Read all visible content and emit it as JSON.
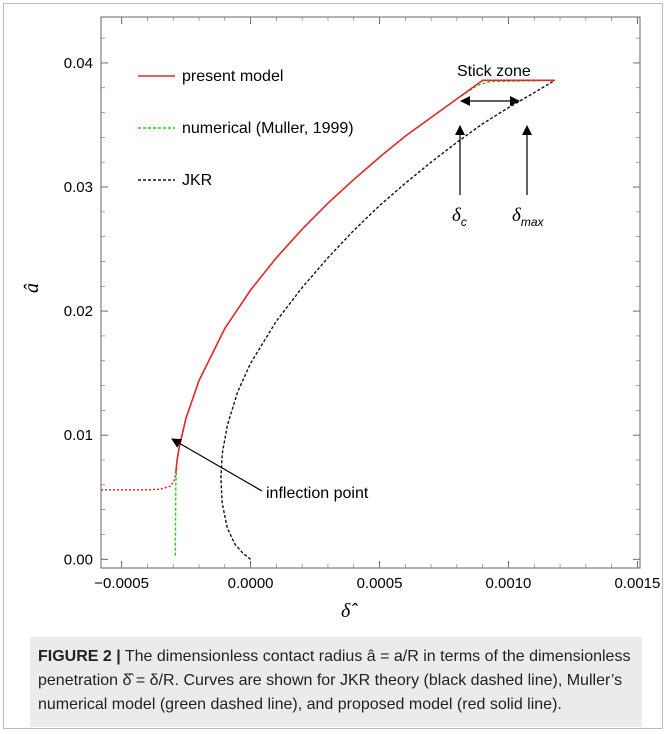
{
  "figure": {
    "label": "FIGURE 2 |",
    "caption": "The dimensionless contact radius â = a/R in terms of the dimensionless penetration δ̂ = δ/R. Curves are shown for JKR theory (black dashed line), Muller’s numerical model (green dashed line), and proposed model (red solid line)."
  },
  "chart_data": {
    "type": "line",
    "xlabel": "δ̂",
    "ylabel": "â",
    "xlim": [
      -0.00058,
      0.00151
    ],
    "ylim": [
      -0.0007,
      0.0437
    ],
    "xticks": [
      -0.0005,
      0.0,
      0.0005,
      0.001,
      0.0015
    ],
    "xtick_labels": [
      "−0.0005",
      "0.0000",
      "0.0005",
      "0.0010",
      "0.0015"
    ],
    "yticks": [
      0.0,
      0.01,
      0.02,
      0.03,
      0.04
    ],
    "ytick_labels": [
      "0.00",
      "0.01",
      "0.02",
      "0.03",
      "0.04"
    ],
    "grid": false,
    "legend_position": "top-left",
    "series": [
      {
        "name": "present model",
        "color": "#e8262a",
        "style": "solid",
        "points": [
          [
            -0.00058,
            0.0056
          ],
          [
            -0.00048,
            0.0056
          ],
          [
            -0.0004,
            0.0056
          ],
          [
            -0.00035,
            0.00565
          ],
          [
            -0.00031,
            0.0059
          ],
          [
            -0.000295,
            0.0064
          ],
          [
            -0.00029,
            0.007
          ],
          [
            -0.000285,
            0.008
          ],
          [
            -0.000275,
            0.0092
          ],
          [
            -0.00025,
            0.0114
          ],
          [
            -0.0002,
            0.0144
          ],
          [
            -0.0001,
            0.0186
          ],
          [
            0.0,
            0.0217
          ],
          [
            0.0001,
            0.0243
          ],
          [
            0.0002,
            0.0266
          ],
          [
            0.0003,
            0.0287
          ],
          [
            0.0004,
            0.0306
          ],
          [
            0.0005,
            0.0324
          ],
          [
            0.0006,
            0.0341
          ],
          [
            0.0007,
            0.0356
          ],
          [
            0.0008,
            0.0371
          ],
          [
            0.00088,
            0.0383
          ],
          [
            0.0009,
            0.0386
          ],
          [
            0.00118,
            0.0386
          ]
        ],
        "dashed_until_x": -0.00029
      },
      {
        "name": "numerical (Muller, 1999)",
        "color": "#22cc22",
        "style": "dashed",
        "points": [
          [
            -0.000292,
            0.0003
          ],
          [
            -0.000291,
            0.003
          ],
          [
            -0.00029,
            0.006
          ],
          [
            -0.000285,
            0.008
          ],
          [
            -0.000275,
            0.0092
          ],
          [
            -0.00025,
            0.0114
          ],
          [
            -0.0002,
            0.0144
          ],
          [
            -0.0001,
            0.0186
          ],
          [
            0.0,
            0.0217
          ],
          [
            0.0001,
            0.0243
          ],
          [
            0.0002,
            0.0266
          ],
          [
            0.0003,
            0.0287
          ],
          [
            0.0004,
            0.0306
          ],
          [
            0.0005,
            0.0324
          ],
          [
            0.0006,
            0.0341
          ],
          [
            0.0007,
            0.0356
          ],
          [
            0.0008,
            0.0371
          ],
          [
            0.00088,
            0.0382
          ],
          [
            0.00093,
            0.0385
          ],
          [
            0.00118,
            0.0386
          ]
        ]
      },
      {
        "name": "JKR",
        "color": "#111111",
        "style": "dashed",
        "points": [
          [
            0.0,
            0.0
          ],
          [
            -3e-05,
            0.0005
          ],
          [
            -6e-05,
            0.0012
          ],
          [
            -9e-05,
            0.0025
          ],
          [
            -0.00011,
            0.0045
          ],
          [
            -0.000115,
            0.0065
          ],
          [
            -0.00011,
            0.0085
          ],
          [
            -9e-05,
            0.0108
          ],
          [
            -5e-05,
            0.0135
          ],
          [
            0.0,
            0.0158
          ],
          [
            0.0001,
            0.0192
          ],
          [
            0.0002,
            0.0219
          ],
          [
            0.0003,
            0.0243
          ],
          [
            0.0004,
            0.0265
          ],
          [
            0.0005,
            0.0285
          ],
          [
            0.0006,
            0.0303
          ],
          [
            0.0007,
            0.032
          ],
          [
            0.0008,
            0.0336
          ],
          [
            0.0009,
            0.0351
          ],
          [
            0.001,
            0.0364
          ],
          [
            0.0011,
            0.0376
          ],
          [
            0.00118,
            0.0386
          ]
        ]
      }
    ],
    "annotations": {
      "stick_zone": "Stick zone",
      "delta_c": "δ",
      "delta_c_sub": "c",
      "delta_max": "δ",
      "delta_max_sub": "max",
      "inflection": "inflection point"
    }
  }
}
